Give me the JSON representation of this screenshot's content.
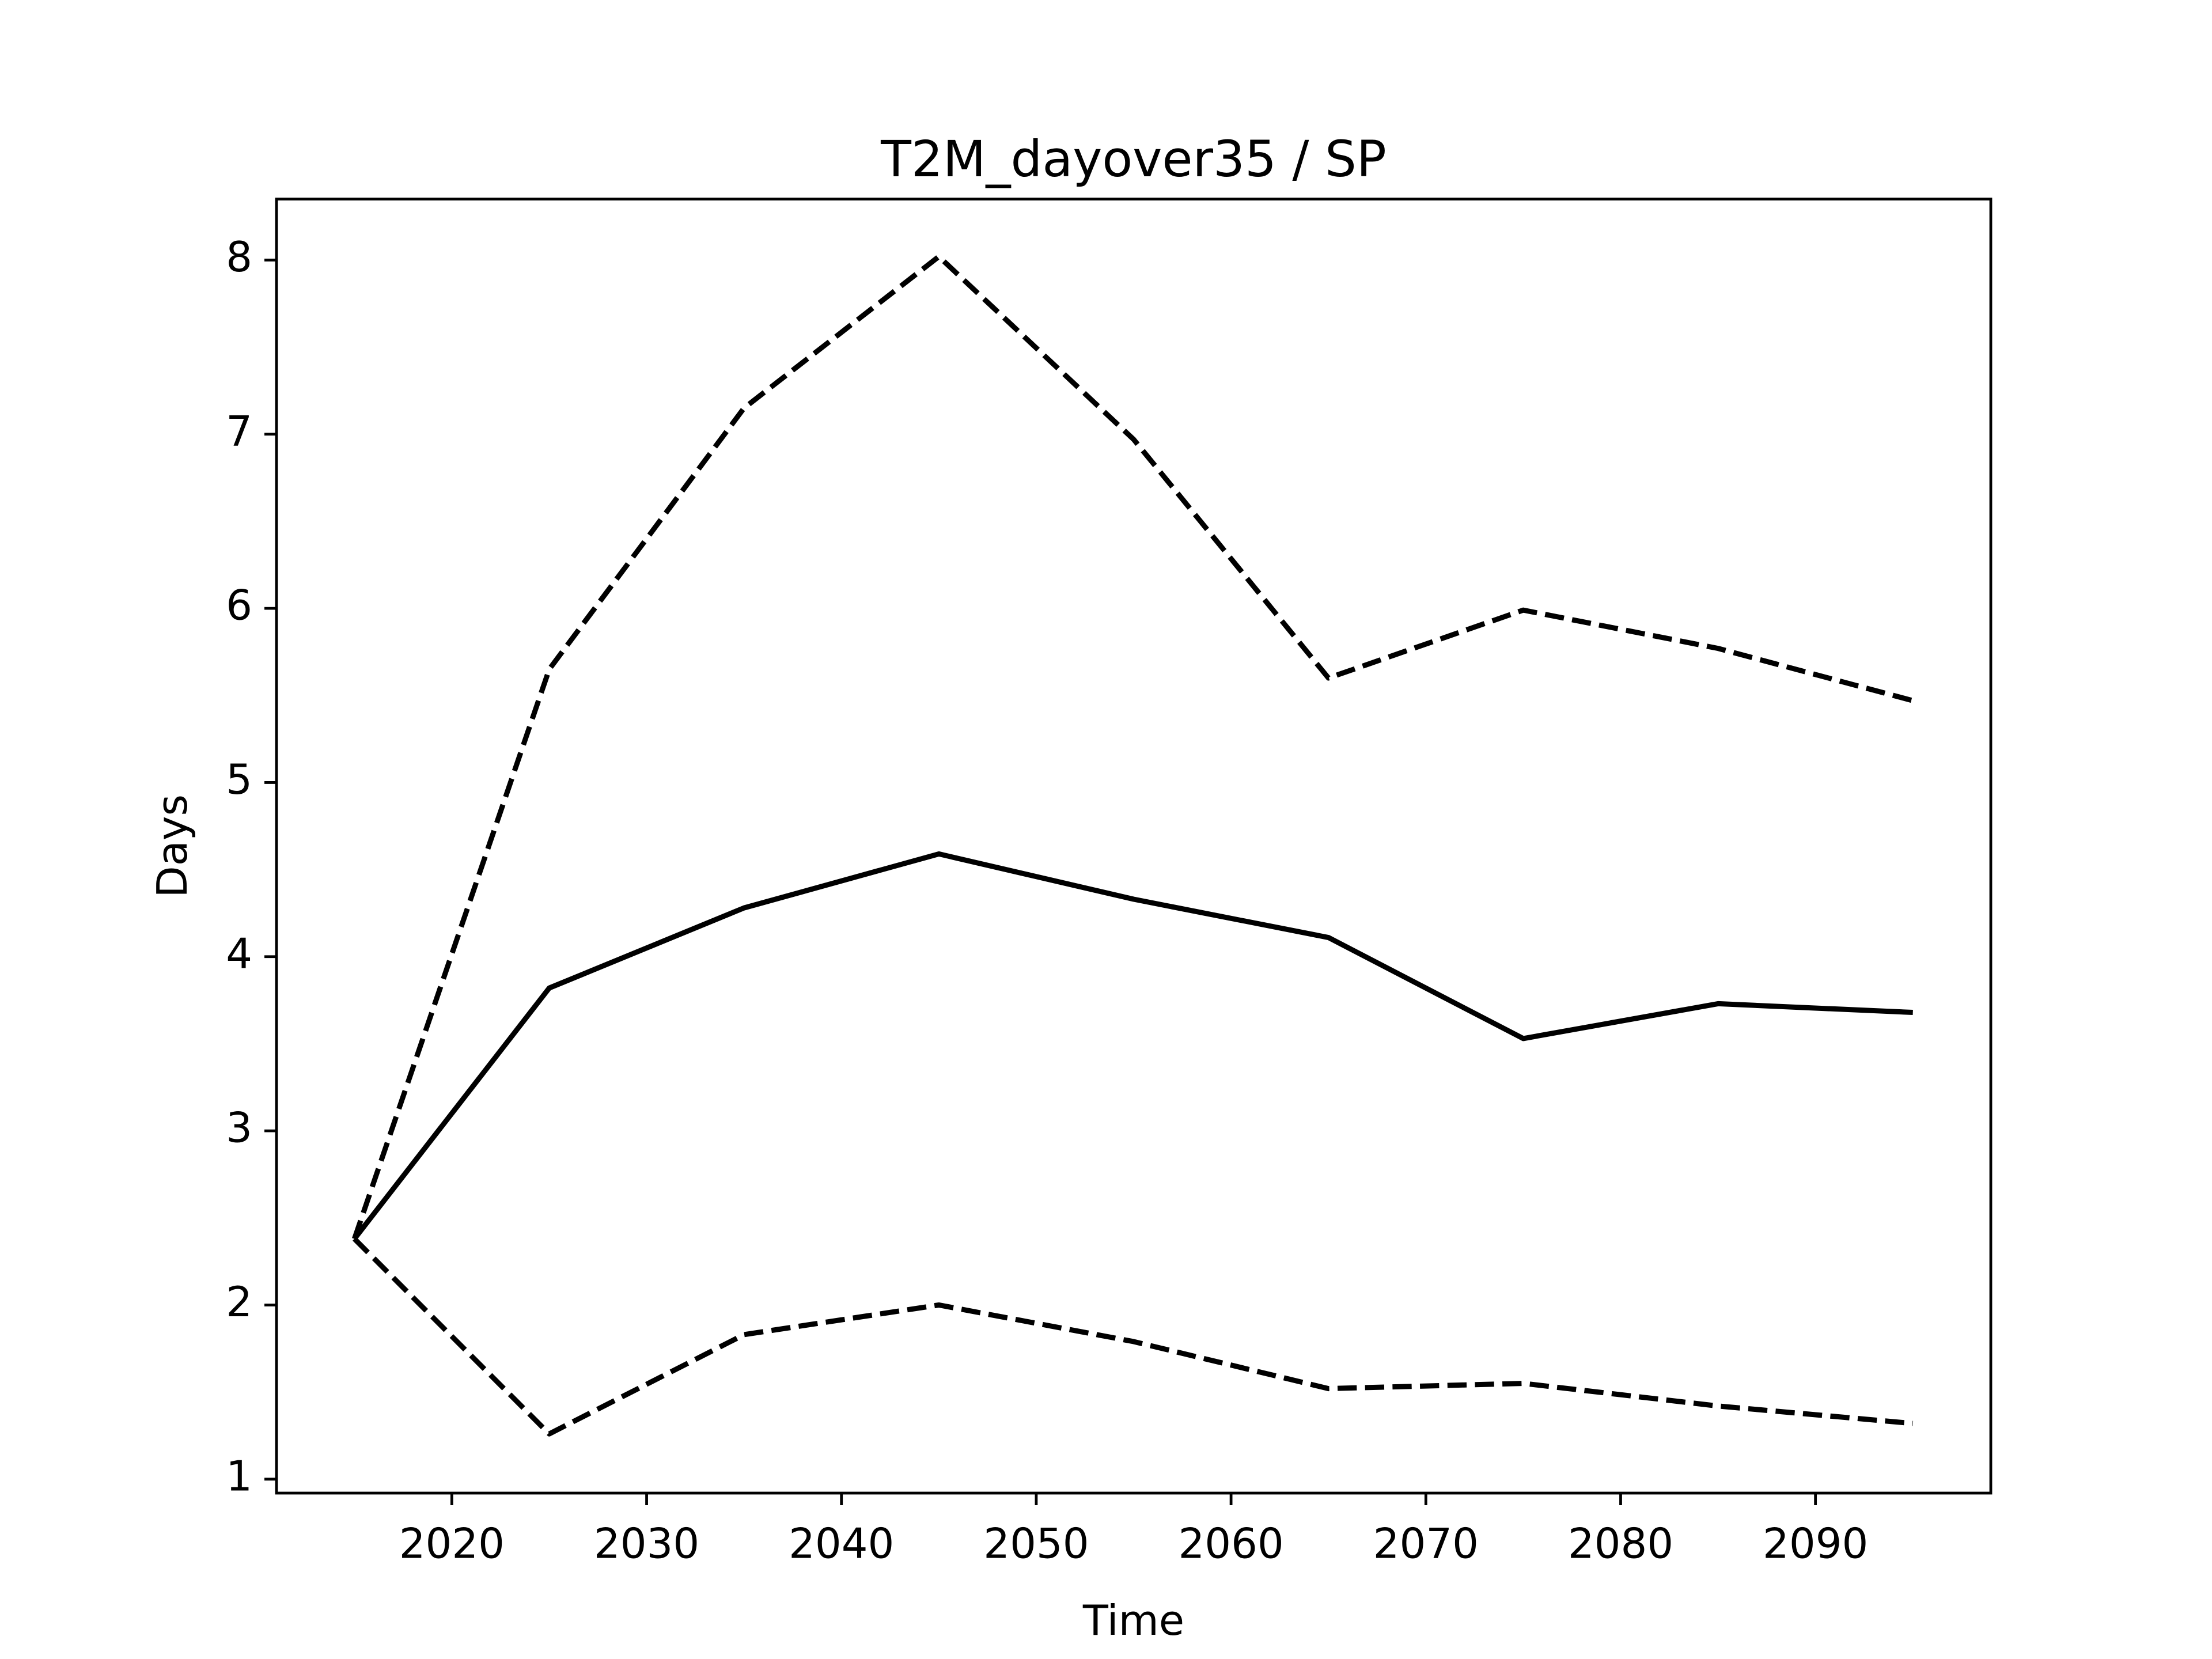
{
  "chart_data": {
    "type": "line",
    "title": "T2M_dayover35 / SP",
    "xlabel": "Time",
    "ylabel": "Days",
    "x": [
      2015,
      2025,
      2035,
      2045,
      2055,
      2065,
      2075,
      2085,
      2095
    ],
    "series": [
      {
        "color": "#000000",
        "dashed": false,
        "values": [
          2.38,
          3.82,
          4.28,
          4.59,
          4.33,
          4.11,
          3.53,
          3.73,
          3.68
        ]
      },
      {
        "color": "#000000",
        "dashed": true,
        "values": [
          2.38,
          5.65,
          7.15,
          8.02,
          6.97,
          5.6,
          5.99,
          5.77,
          5.47
        ]
      },
      {
        "color": "#000000",
        "dashed": true,
        "values": [
          2.38,
          1.26,
          1.83,
          2.0,
          1.79,
          1.52,
          1.55,
          1.42,
          1.32
        ]
      }
    ],
    "xlim": [
      2011,
      2099
    ],
    "xticks": [
      2020,
      2030,
      2040,
      2050,
      2060,
      2070,
      2080,
      2090
    ],
    "ylim": [
      0.92,
      8.35
    ],
    "yticks": [
      1,
      2,
      3,
      4,
      5,
      6,
      7,
      8
    ],
    "grid": false
  }
}
